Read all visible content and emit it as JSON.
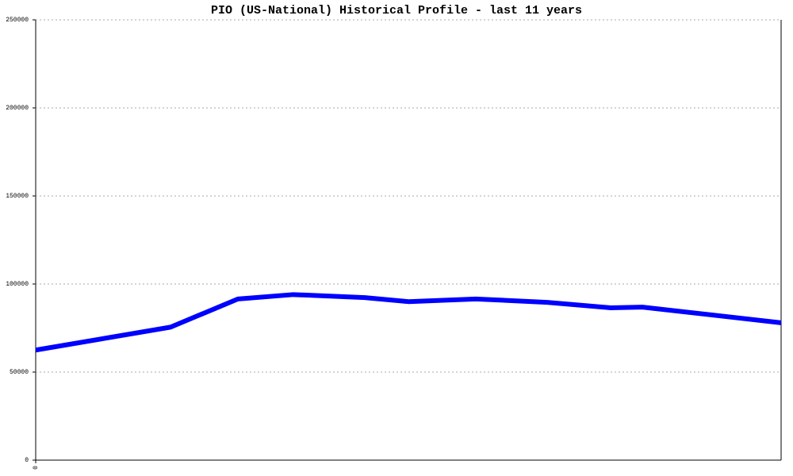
{
  "chart_data": {
    "type": "line",
    "title": "PIO (US-National) Historical Profile - last 11 years",
    "x": [
      0,
      170,
      255,
      325,
      415,
      470,
      555,
      645,
      725,
      765,
      940
    ],
    "xlim": [
      0,
      940
    ],
    "xticks": [
      0
    ],
    "ylim": [
      0,
      250000
    ],
    "yticks": [
      0,
      50000,
      100000,
      150000,
      200000,
      250000
    ],
    "grid": true,
    "series": [
      {
        "color": "#0000ff",
        "values": [
          62500,
          75500,
          91500,
          94000,
          92300,
          90000,
          91500,
          89600,
          86500,
          86900,
          78000
        ]
      }
    ]
  }
}
